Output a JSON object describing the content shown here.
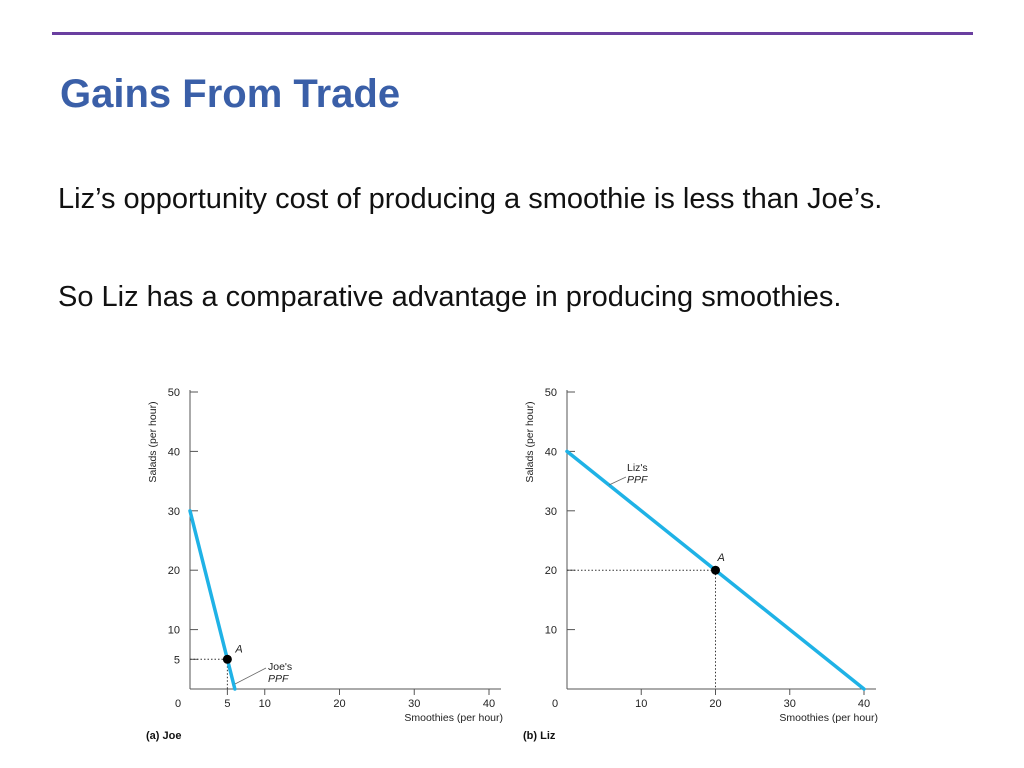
{
  "slide": {
    "title": "Gains From Trade",
    "paragraphs": [
      "Liz’s opportunity cost of producing a smoothie is less than Joe’s.",
      "So Liz has a comparative advantage in producing smoothies."
    ]
  },
  "colors": {
    "rule": "#6a3fa0",
    "title": "#3a5fa8",
    "ppf": "#1fb2e6"
  },
  "chart_data": [
    {
      "type": "line",
      "panel_label": "(a) Joe",
      "xlabel": "Smoothies (per hour)",
      "ylabel": "Salads (per hour)",
      "xlim": [
        0,
        40
      ],
      "ylim": [
        0,
        50
      ],
      "x_ticks": [
        0,
        5,
        10,
        20,
        30,
        40
      ],
      "y_ticks": [
        5,
        10,
        20,
        30,
        40,
        50
      ],
      "series": [
        {
          "name": "Joe's PPF",
          "x": [
            0,
            6
          ],
          "y": [
            30,
            0
          ]
        }
      ],
      "point": {
        "label": "A",
        "x": 5,
        "y": 5
      },
      "ppf_label": {
        "line1": "Joe's",
        "line2": "PPF"
      }
    },
    {
      "type": "line",
      "panel_label": "(b) Liz",
      "xlabel": "Smoothies (per hour)",
      "ylabel": "Salads (per hour)",
      "xlim": [
        0,
        40
      ],
      "ylim": [
        0,
        50
      ],
      "x_ticks": [
        0,
        10,
        20,
        30,
        40
      ],
      "y_ticks": [
        10,
        20,
        30,
        40,
        50
      ],
      "series": [
        {
          "name": "Liz's PPF",
          "x": [
            0,
            40
          ],
          "y": [
            40,
            0
          ]
        }
      ],
      "point": {
        "label": "A",
        "x": 20,
        "y": 20
      },
      "ppf_label": {
        "line1": "Liz's",
        "line2": "PPF"
      }
    }
  ]
}
